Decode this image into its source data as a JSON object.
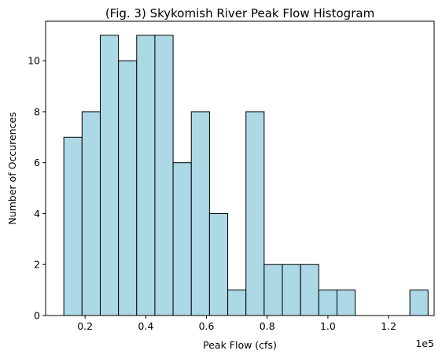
{
  "chart_data": {
    "type": "bar",
    "title": "(Fig. 3) Skykomish River Peak Flow Histogram",
    "xlabel": "Peak Flow (cfs)",
    "ylabel": "Number of Occurences",
    "x_offset_label": "1e5",
    "x_scale": 100000,
    "xlim": [
      0.07,
      1.35
    ],
    "ylim": [
      0,
      11.55
    ],
    "grid": false,
    "x_ticks": [
      {
        "value": 0.2,
        "label": "0.2"
      },
      {
        "value": 0.4,
        "label": "0.4"
      },
      {
        "value": 0.6,
        "label": "0.6"
      },
      {
        "value": 0.8,
        "label": "0.8"
      },
      {
        "value": 1.0,
        "label": "1.0"
      },
      {
        "value": 1.2,
        "label": "1.2"
      }
    ],
    "y_ticks": [
      {
        "value": 0,
        "label": "0"
      },
      {
        "value": 2,
        "label": "2"
      },
      {
        "value": 4,
        "label": "4"
      },
      {
        "value": 6,
        "label": "6"
      },
      {
        "value": 8,
        "label": "8"
      },
      {
        "value": 10,
        "label": "10"
      }
    ],
    "bins_x_1e5": [
      0.13,
      0.19,
      0.25,
      0.31,
      0.37,
      0.43,
      0.49,
      0.55,
      0.61,
      0.67,
      0.73,
      0.79,
      0.85,
      0.91,
      0.97,
      1.03,
      1.09,
      1.15,
      1.21,
      1.27,
      1.33
    ],
    "counts": [
      7,
      8,
      11,
      10,
      11,
      11,
      6,
      8,
      4,
      1,
      8,
      2,
      2,
      2,
      1,
      1,
      0,
      0,
      0,
      1
    ],
    "bar_color": "#add8e6",
    "edge_color": "#000000"
  }
}
